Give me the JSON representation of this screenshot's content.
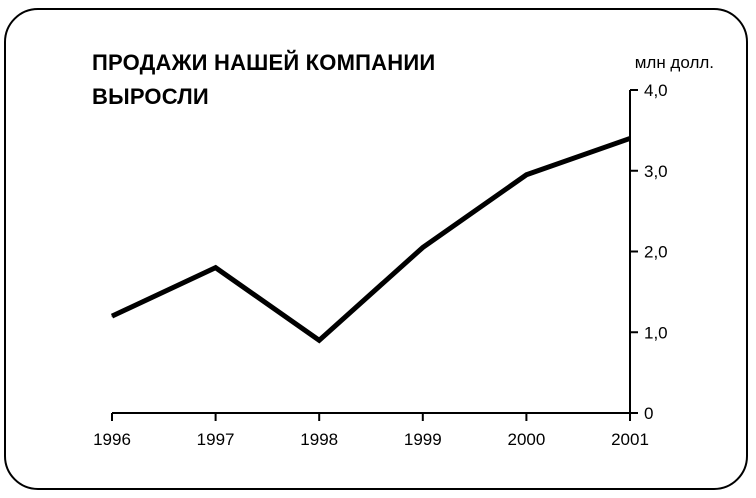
{
  "chart_data": {
    "type": "line",
    "title_lines": [
      "ПРОДАЖИ НАШЕЙ КОМПАНИИ",
      "ВЫРОСЛИ"
    ],
    "unit_label": "млн  долл.",
    "x": [
      "1996",
      "1997",
      "1998",
      "1999",
      "2000",
      "2001"
    ],
    "y_ticks": [
      "0",
      "1,0",
      "2,0",
      "3,0",
      "4,0"
    ],
    "ylim": [
      0,
      4
    ],
    "y_axis_position": "right",
    "grid": false,
    "legend": "none",
    "series": [
      {
        "values": [
          1.2,
          1.8,
          0.9,
          2.05,
          2.95,
          3.4
        ],
        "color": "#000000"
      }
    ]
  }
}
